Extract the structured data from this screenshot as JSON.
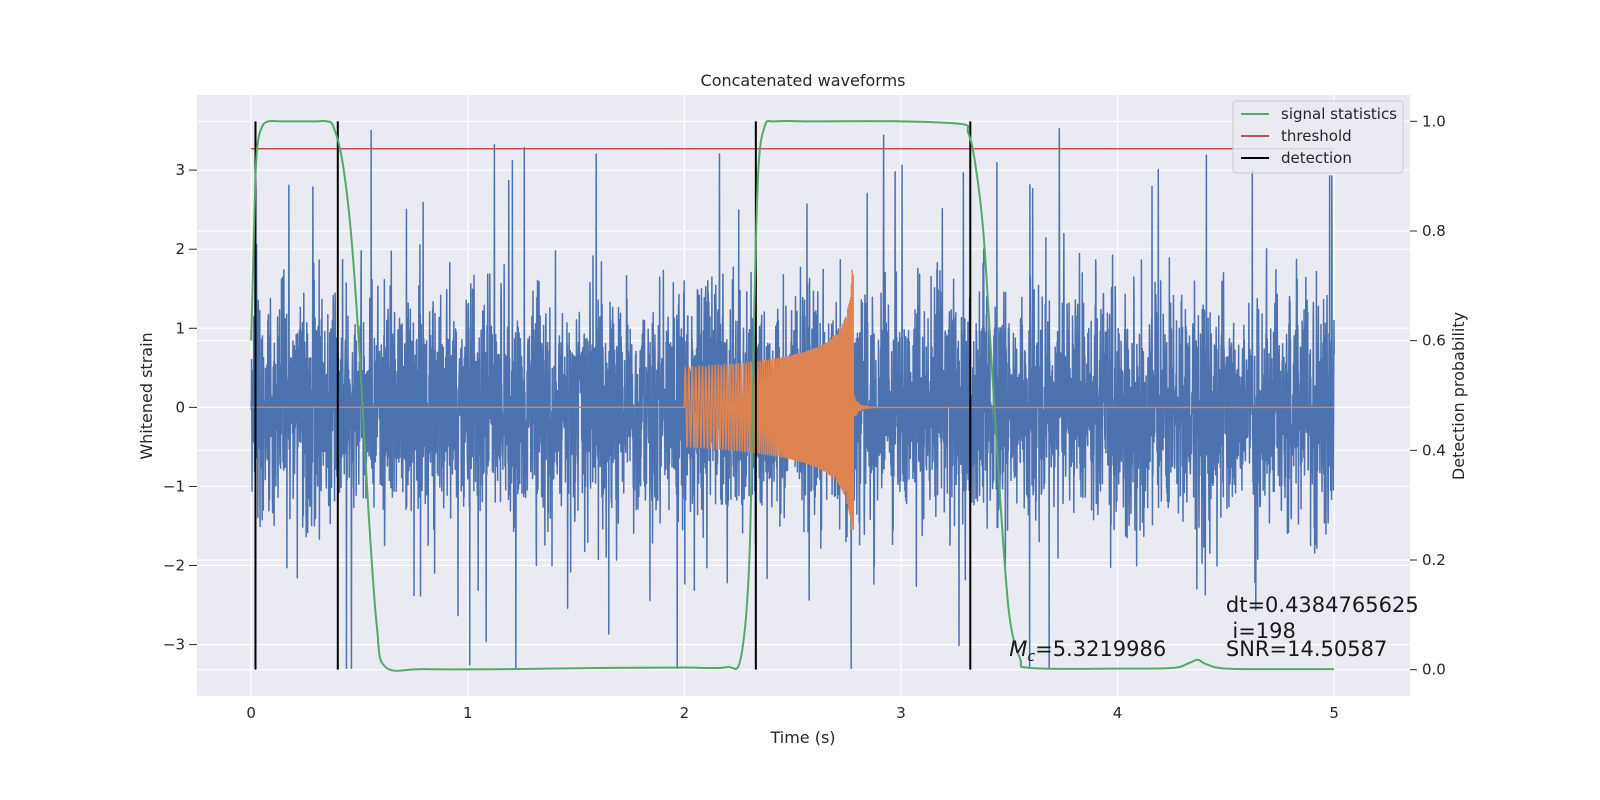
{
  "chart_data": {
    "type": "line",
    "title": "Concatenated waveforms",
    "xlabel": "Time (s)",
    "ylabel": "Whitened strain",
    "y2label": "Detection probability",
    "xlim": [
      -0.25,
      5.35
    ],
    "ylim": [
      -3.65,
      3.95
    ],
    "y2lim": [
      -0.048,
      1.048
    ],
    "x_ticks": [
      0,
      1,
      2,
      3,
      4,
      5
    ],
    "x_tick_labels": [
      "0",
      "1",
      "2",
      "3",
      "4",
      "5"
    ],
    "y_ticks": [
      -3,
      -2,
      -1,
      0,
      1,
      2,
      3
    ],
    "y_tick_labels": [
      "−3",
      "−2",
      "−1",
      "0",
      "1",
      "2",
      "3"
    ],
    "y2_ticks": [
      0.0,
      0.2,
      0.4,
      0.6,
      0.8,
      1.0
    ],
    "y2_tick_labels": [
      "0.0",
      "0.2",
      "0.4",
      "0.6",
      "0.8",
      "1.0"
    ],
    "grid": true,
    "legend": {
      "position": "top-right",
      "entries": [
        {
          "label": "signal statistics",
          "color": "#55a868"
        },
        {
          "label": "threshold",
          "color": "#c44e52"
        },
        {
          "label": "detection",
          "color": "#000000"
        }
      ]
    },
    "series": [
      {
        "name": "whitened strain noise",
        "axis": "left",
        "color": "#4c72b0",
        "x_range": [
          0,
          5
        ],
        "typical_amplitude": 1.0,
        "peak_amplitude": 3.6
      },
      {
        "name": "injected waveform",
        "axis": "left",
        "color": "#dd8452",
        "x_range": [
          0,
          5
        ],
        "chirp": {
          "start": 2.0,
          "end": 2.78,
          "start_amplitude": 0.5,
          "peak_amplitude": 1.85,
          "peak_low": -1.55
        }
      },
      {
        "name": "signal statistics",
        "axis": "right",
        "color": "#55a868",
        "x": [
          0.0,
          0.01,
          0.02,
          0.03,
          0.05,
          0.08,
          0.15,
          0.3,
          0.35,
          0.38,
          0.42,
          0.46,
          0.5,
          0.54,
          0.58,
          0.62,
          0.8,
          1.2,
          1.6,
          2.0,
          2.1,
          2.2,
          2.26,
          2.3,
          2.32,
          2.34,
          2.37,
          2.42,
          2.6,
          3.0,
          3.28,
          3.31,
          3.34,
          3.38,
          3.42,
          3.46,
          3.5,
          3.55,
          3.6,
          4.0,
          4.25,
          4.33,
          4.37,
          4.41,
          4.5,
          4.8,
          5.0
        ],
        "y": [
          0.6,
          0.75,
          0.9,
          0.96,
          0.99,
          1.0,
          1.0,
          1.0,
          1.0,
          0.99,
          0.93,
          0.8,
          0.58,
          0.3,
          0.08,
          0.005,
          0.001,
          0.001,
          0.003,
          0.004,
          0.003,
          0.005,
          0.02,
          0.2,
          0.6,
          0.9,
          0.99,
          1.0,
          1.0,
          1.0,
          0.995,
          0.98,
          0.93,
          0.8,
          0.55,
          0.3,
          0.1,
          0.02,
          0.003,
          0.002,
          0.003,
          0.012,
          0.018,
          0.01,
          0.002,
          0.001,
          0.001
        ]
      },
      {
        "name": "threshold",
        "axis": "right",
        "color": "#c44e52",
        "x": [
          0,
          5
        ],
        "y": [
          0.95,
          0.95
        ]
      }
    ],
    "detections": {
      "color": "#000000",
      "x": [
        0.02,
        0.4,
        2.33,
        3.32
      ],
      "y_range": [
        0,
        1
      ]
    },
    "annotations": [
      {
        "text": "dt=0.4384765625",
        "x": 4.5,
        "y2": 0.105
      },
      {
        "text": "i=198",
        "x": 4.53,
        "y2": 0.058
      },
      {
        "text": "SNR=14.50587",
        "x": 4.5,
        "y2": 0.025
      },
      {
        "text": "=5.3219986",
        "prefix": "M",
        "subscript": "c",
        "x": 3.5,
        "y2": 0.025
      }
    ]
  }
}
